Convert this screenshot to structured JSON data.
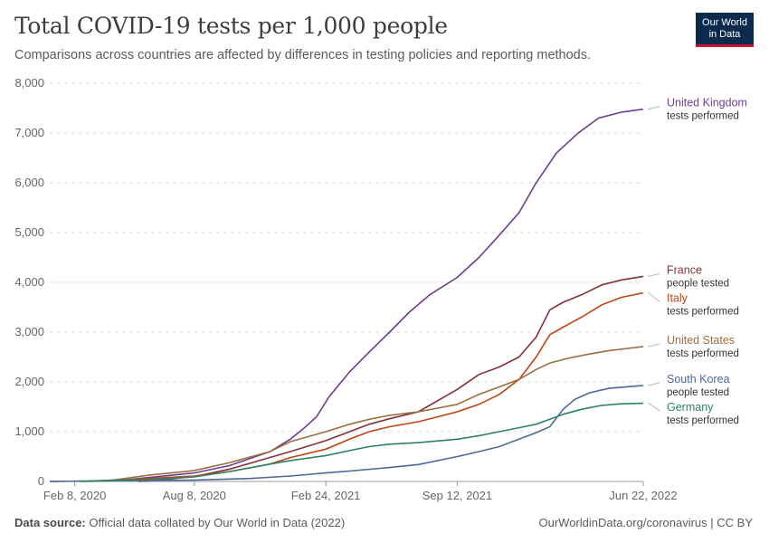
{
  "header": {
    "title": "Total COVID-19 tests per 1,000 people",
    "subtitle": "Comparisons across countries are affected by differences in testing policies and reporting methods.",
    "logo_line1": "Our World",
    "logo_line2": "in Data"
  },
  "footer": {
    "source_label": "Data source:",
    "source_text": "Official data collated by Our World in Data (2022)",
    "url": "OurWorldinData.org/coronavirus | CC BY"
  },
  "chart_data": {
    "type": "line",
    "title": "Total COVID-19 tests per 1,000 people",
    "xlabel": "",
    "ylabel": "",
    "ylim": [
      0,
      8000
    ],
    "xlim": [
      "2020-01-01",
      "2022-06-22"
    ],
    "y_ticks": [
      0,
      1000,
      2000,
      3000,
      4000,
      5000,
      6000,
      7000,
      8000
    ],
    "y_tick_labels": [
      "0",
      "1,000",
      "2,000",
      "3,000",
      "4,000",
      "5,000",
      "6,000",
      "7,000",
      "8,000"
    ],
    "x_ticks": [
      "2020-02-08",
      "2020-08-08",
      "2021-02-24",
      "2021-09-12",
      "2022-06-22"
    ],
    "x_tick_labels": [
      "Feb 8, 2020",
      "Aug 8, 2020",
      "Feb 24, 2021",
      "Sep 12, 2021",
      "Jun 22, 2022"
    ],
    "grid": "horizontal dashed",
    "legend": "right, labels at line ends",
    "series": [
      {
        "name": "United Kingdom",
        "note": "tests performed",
        "color": "#6d3e91",
        "points": [
          [
            "2020-01-01",
            0
          ],
          [
            "2020-03-01",
            10
          ],
          [
            "2020-05-01",
            40
          ],
          [
            "2020-06-01",
            80
          ],
          [
            "2020-08-08",
            170
          ],
          [
            "2020-10-01",
            320
          ],
          [
            "2020-12-01",
            600
          ],
          [
            "2021-01-01",
            850
          ],
          [
            "2021-01-20",
            1050
          ],
          [
            "2021-02-10",
            1300
          ],
          [
            "2021-03-01",
            1700
          ],
          [
            "2021-04-01",
            2200
          ],
          [
            "2021-05-01",
            2600
          ],
          [
            "2021-06-01",
            3000
          ],
          [
            "2021-07-01",
            3400
          ],
          [
            "2021-08-01",
            3750
          ],
          [
            "2021-09-12",
            4100
          ],
          [
            "2021-10-15",
            4500
          ],
          [
            "2021-11-15",
            4950
          ],
          [
            "2021-12-15",
            5400
          ],
          [
            "2022-01-10",
            6000
          ],
          [
            "2022-02-10",
            6600
          ],
          [
            "2022-03-15",
            7000
          ],
          [
            "2022-04-15",
            7300
          ],
          [
            "2022-05-20",
            7420
          ],
          [
            "2022-06-22",
            7480
          ]
        ]
      },
      {
        "name": "France",
        "note": "people tested",
        "color": "#883039",
        "points": [
          [
            "2020-05-15",
            0
          ],
          [
            "2020-06-15",
            30
          ],
          [
            "2020-08-08",
            100
          ],
          [
            "2020-10-01",
            250
          ],
          [
            "2020-11-15",
            420
          ],
          [
            "2021-01-01",
            600
          ],
          [
            "2021-02-24",
            820
          ],
          [
            "2021-04-01",
            1000
          ],
          [
            "2021-05-01",
            1150
          ],
          [
            "2021-06-01",
            1260
          ],
          [
            "2021-07-15",
            1400
          ],
          [
            "2021-09-12",
            1850
          ],
          [
            "2021-10-15",
            2150
          ],
          [
            "2021-11-15",
            2300
          ],
          [
            "2021-12-15",
            2500
          ],
          [
            "2022-01-10",
            2900
          ],
          [
            "2022-01-31",
            3450
          ],
          [
            "2022-02-20",
            3600
          ],
          [
            "2022-03-20",
            3750
          ],
          [
            "2022-04-20",
            3950
          ],
          [
            "2022-05-20",
            4050
          ],
          [
            "2022-06-22",
            4120
          ]
        ]
      },
      {
        "name": "Italy",
        "note": "tests performed",
        "color": "#c24413",
        "points": [
          [
            "2020-02-20",
            0
          ],
          [
            "2020-04-01",
            15
          ],
          [
            "2020-06-01",
            60
          ],
          [
            "2020-08-08",
            110
          ],
          [
            "2020-10-01",
            200
          ],
          [
            "2020-12-01",
            350
          ],
          [
            "2021-01-01",
            480
          ],
          [
            "2021-02-24",
            650
          ],
          [
            "2021-04-01",
            850
          ],
          [
            "2021-05-01",
            1000
          ],
          [
            "2021-06-01",
            1100
          ],
          [
            "2021-07-15",
            1200
          ],
          [
            "2021-09-12",
            1400
          ],
          [
            "2021-10-15",
            1550
          ],
          [
            "2021-11-15",
            1750
          ],
          [
            "2021-12-15",
            2050
          ],
          [
            "2022-01-10",
            2500
          ],
          [
            "2022-01-31",
            2950
          ],
          [
            "2022-02-20",
            3100
          ],
          [
            "2022-03-20",
            3300
          ],
          [
            "2022-04-20",
            3550
          ],
          [
            "2022-05-20",
            3700
          ],
          [
            "2022-06-22",
            3790
          ]
        ]
      },
      {
        "name": "United States",
        "note": "tests performed",
        "color": "#9a6f42",
        "points": [
          [
            "2020-03-01",
            0
          ],
          [
            "2020-04-01",
            20
          ],
          [
            "2020-05-01",
            70
          ],
          [
            "2020-06-01",
            130
          ],
          [
            "2020-08-08",
            220
          ],
          [
            "2020-10-01",
            380
          ],
          [
            "2020-12-01",
            600
          ],
          [
            "2021-01-01",
            800
          ],
          [
            "2021-02-24",
            1000
          ],
          [
            "2021-04-01",
            1150
          ],
          [
            "2021-05-01",
            1250
          ],
          [
            "2021-06-01",
            1330
          ],
          [
            "2021-07-15",
            1400
          ],
          [
            "2021-09-12",
            1550
          ],
          [
            "2021-10-15",
            1750
          ],
          [
            "2021-11-15",
            1900
          ],
          [
            "2021-12-15",
            2050
          ],
          [
            "2022-01-10",
            2250
          ],
          [
            "2022-01-31",
            2380
          ],
          [
            "2022-03-01",
            2480
          ],
          [
            "2022-04-01",
            2560
          ],
          [
            "2022-05-01",
            2630
          ],
          [
            "2022-06-22",
            2710
          ]
        ]
      },
      {
        "name": "South Korea",
        "note": "people tested",
        "color": "#4c6a9c",
        "points": [
          [
            "2020-01-01",
            0
          ],
          [
            "2020-03-01",
            10
          ],
          [
            "2020-06-01",
            20
          ],
          [
            "2020-08-08",
            30
          ],
          [
            "2020-11-01",
            60
          ],
          [
            "2021-01-01",
            110
          ],
          [
            "2021-02-24",
            170
          ],
          [
            "2021-04-01",
            210
          ],
          [
            "2021-06-01",
            280
          ],
          [
            "2021-07-15",
            340
          ],
          [
            "2021-09-12",
            500
          ],
          [
            "2021-10-15",
            600
          ],
          [
            "2021-11-15",
            700
          ],
          [
            "2021-12-15",
            850
          ],
          [
            "2022-01-10",
            980
          ],
          [
            "2022-01-31",
            1100
          ],
          [
            "2022-02-20",
            1450
          ],
          [
            "2022-03-10",
            1650
          ],
          [
            "2022-04-01",
            1780
          ],
          [
            "2022-05-01",
            1870
          ],
          [
            "2022-06-22",
            1930
          ]
        ]
      },
      {
        "name": "Germany",
        "note": "tests performed",
        "color": "#2c8465",
        "points": [
          [
            "2020-02-15",
            0
          ],
          [
            "2020-04-01",
            20
          ],
          [
            "2020-06-01",
            40
          ],
          [
            "2020-08-08",
            90
          ],
          [
            "2020-10-01",
            200
          ],
          [
            "2020-12-01",
            350
          ],
          [
            "2021-01-01",
            420
          ],
          [
            "2021-02-24",
            520
          ],
          [
            "2021-04-01",
            620
          ],
          [
            "2021-05-01",
            700
          ],
          [
            "2021-06-01",
            750
          ],
          [
            "2021-07-15",
            780
          ],
          [
            "2021-09-12",
            850
          ],
          [
            "2021-10-15",
            920
          ],
          [
            "2021-11-15",
            1000
          ],
          [
            "2021-12-15",
            1080
          ],
          [
            "2022-01-10",
            1150
          ],
          [
            "2022-01-31",
            1250
          ],
          [
            "2022-02-20",
            1350
          ],
          [
            "2022-03-20",
            1450
          ],
          [
            "2022-04-20",
            1530
          ],
          [
            "2022-05-20",
            1560
          ],
          [
            "2022-06-22",
            1570
          ]
        ]
      }
    ]
  }
}
